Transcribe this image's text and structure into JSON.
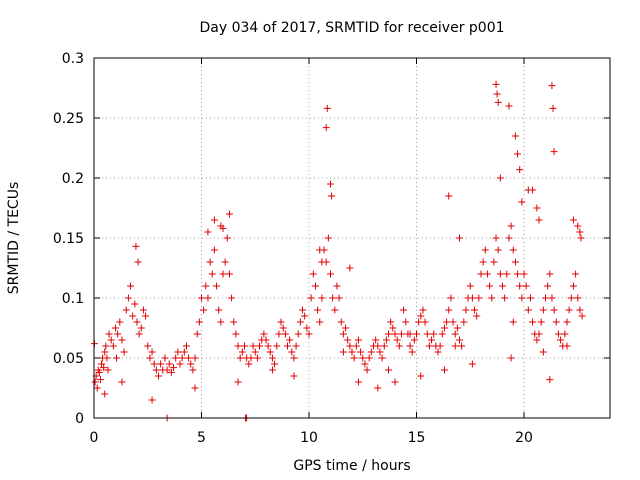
{
  "chart_data": {
    "type": "scatter",
    "title": "Day 034 of 2017, SRMTID for receiver p001",
    "xlabel": "GPS time / hours",
    "ylabel": "SRMTID / TECUs",
    "xlim": [
      0,
      24
    ],
    "ylim": [
      0,
      0.3
    ],
    "xticks": [
      0,
      5,
      10,
      15,
      20
    ],
    "yticks": [
      0,
      0.05,
      0.1,
      0.15,
      0.2,
      0.25,
      0.3
    ],
    "xtick_labels": [
      "0",
      "5",
      "10",
      "15",
      "20"
    ],
    "ytick_labels": [
      "0",
      "0.05",
      "0.1",
      "0.15",
      "0.2",
      "0.25",
      "0.3"
    ],
    "grid": true,
    "marker": "+",
    "color": "#e00000",
    "series": [
      {
        "name": "SRMTID",
        "x": [
          0.05,
          0.1,
          0.15,
          0.2,
          0.25,
          0.3,
          0.35,
          0.4,
          0.45,
          0.5,
          0.55,
          0.6,
          0.65,
          0.7,
          0.8,
          0.9,
          1.0,
          1.05,
          1.1,
          1.2,
          1.3,
          1.4,
          1.5,
          1.6,
          1.7,
          1.8,
          1.9,
          2.0,
          2.1,
          2.2,
          2.3,
          2.4,
          2.5,
          2.6,
          2.7,
          2.8,
          2.9,
          3.0,
          3.1,
          3.2,
          3.3,
          3.4,
          3.5,
          3.6,
          3.7,
          3.8,
          3.9,
          4.0,
          4.1,
          4.2,
          4.3,
          4.4,
          4.5,
          4.6,
          4.7,
          4.8,
          4.9,
          5.0,
          5.1,
          5.2,
          5.3,
          5.4,
          5.5,
          5.6,
          5.7,
          5.8,
          5.9,
          6.0,
          6.1,
          6.2,
          6.3,
          6.4,
          6.5,
          6.6,
          6.7,
          6.8,
          6.9,
          7.0,
          7.1,
          7.2,
          7.3,
          7.4,
          7.5,
          7.6,
          7.7,
          7.8,
          7.9,
          8.0,
          8.1,
          8.2,
          8.3,
          8.4,
          8.5,
          8.6,
          8.7,
          8.8,
          8.9,
          9.0,
          9.1,
          9.2,
          9.3,
          9.4,
          9.5,
          9.6,
          9.7,
          9.8,
          9.9,
          10.0,
          10.1,
          10.2,
          10.3,
          10.4,
          10.5,
          10.6,
          10.7,
          10.8,
          10.9,
          11.0,
          11.1,
          11.2,
          11.3,
          11.4,
          11.5,
          11.6,
          11.7,
          11.8,
          11.9,
          12.0,
          12.1,
          12.2,
          12.3,
          12.4,
          12.5,
          12.6,
          12.7,
          12.8,
          12.9,
          13.0,
          13.1,
          13.2,
          13.3,
          13.4,
          13.5,
          13.6,
          13.7,
          13.8,
          13.9,
          14.0,
          14.1,
          14.2,
          14.3,
          14.4,
          14.5,
          14.6,
          14.7,
          14.8,
          14.9,
          15.0,
          15.1,
          15.2,
          15.3,
          15.4,
          15.5,
          15.6,
          15.7,
          15.8,
          15.9,
          16.0,
          16.1,
          16.2,
          16.3,
          16.4,
          16.5,
          16.6,
          16.7,
          16.8,
          16.9,
          17.0,
          17.1,
          17.2,
          17.3,
          17.4,
          17.5,
          17.6,
          17.7,
          17.8,
          17.9,
          18.0,
          18.1,
          18.2,
          18.3,
          18.4,
          18.5,
          18.6,
          18.7,
          18.8,
          18.9,
          19.0,
          19.1,
          19.2,
          19.3,
          19.4,
          19.5,
          19.6,
          19.7,
          19.8,
          19.9,
          20.0,
          20.1,
          20.2,
          20.3,
          20.4,
          20.5,
          20.6,
          20.7,
          20.8,
          20.9,
          21.0,
          21.1,
          21.2,
          21.3,
          21.4,
          21.5,
          21.6,
          21.7,
          21.8,
          21.9,
          22.0,
          22.1,
          22.2,
          22.3,
          22.4,
          22.5,
          22.6,
          22.7,
          1.95,
          2.05,
          5.6,
          6.3,
          10.8,
          10.85,
          11.0,
          11.05,
          18.7,
          18.75,
          18.8,
          19.3,
          19.6,
          19.7,
          19.8,
          21.3,
          21.35,
          21.4,
          5.3,
          5.9,
          6.0,
          10.5,
          10.6,
          11.9,
          16.5,
          17.0,
          18.9,
          19.9,
          20.2,
          20.4,
          20.6,
          20.7,
          22.3,
          22.5,
          22.6,
          22.65,
          0.02,
          3.4,
          7.05,
          7.1,
          11.6,
          13.2,
          14.0,
          14.7,
          16.8,
          19.5,
          21.2,
          0.5,
          1.3,
          2.7,
          4.7,
          6.7,
          8.3,
          9.3,
          12.3,
          13.7,
          15.2,
          16.3,
          17.6,
          19.4,
          20.9,
          22.0
        ],
        "y": [
          0.03,
          0.035,
          0.025,
          0.04,
          0.038,
          0.032,
          0.045,
          0.05,
          0.042,
          0.055,
          0.06,
          0.05,
          0.04,
          0.07,
          0.065,
          0.06,
          0.075,
          0.05,
          0.07,
          0.08,
          0.065,
          0.055,
          0.09,
          0.1,
          0.11,
          0.085,
          0.095,
          0.08,
          0.07,
          0.075,
          0.09,
          0.085,
          0.06,
          0.05,
          0.055,
          0.045,
          0.04,
          0.035,
          0.045,
          0.04,
          0.05,
          0.04,
          0.045,
          0.038,
          0.042,
          0.05,
          0.055,
          0.045,
          0.05,
          0.055,
          0.06,
          0.05,
          0.045,
          0.04,
          0.05,
          0.07,
          0.08,
          0.1,
          0.09,
          0.11,
          0.1,
          0.13,
          0.12,
          0.14,
          0.11,
          0.09,
          0.08,
          0.12,
          0.13,
          0.15,
          0.12,
          0.1,
          0.08,
          0.07,
          0.06,
          0.05,
          0.055,
          0.06,
          0.05,
          0.045,
          0.05,
          0.06,
          0.055,
          0.05,
          0.06,
          0.065,
          0.07,
          0.065,
          0.06,
          0.055,
          0.05,
          0.045,
          0.06,
          0.07,
          0.08,
          0.075,
          0.07,
          0.06,
          0.065,
          0.055,
          0.05,
          0.06,
          0.07,
          0.08,
          0.09,
          0.085,
          0.075,
          0.07,
          0.1,
          0.12,
          0.11,
          0.09,
          0.08,
          0.1,
          0.14,
          0.13,
          0.15,
          0.12,
          0.1,
          0.09,
          0.11,
          0.1,
          0.08,
          0.07,
          0.075,
          0.065,
          0.06,
          0.055,
          0.05,
          0.06,
          0.065,
          0.055,
          0.05,
          0.045,
          0.04,
          0.05,
          0.055,
          0.06,
          0.065,
          0.06,
          0.055,
          0.05,
          0.06,
          0.065,
          0.07,
          0.08,
          0.075,
          0.07,
          0.065,
          0.06,
          0.07,
          0.09,
          0.08,
          0.07,
          0.06,
          0.055,
          0.065,
          0.07,
          0.08,
          0.085,
          0.09,
          0.08,
          0.07,
          0.06,
          0.065,
          0.07,
          0.06,
          0.055,
          0.06,
          0.07,
          0.075,
          0.08,
          0.09,
          0.1,
          0.08,
          0.07,
          0.075,
          0.065,
          0.06,
          0.08,
          0.09,
          0.1,
          0.11,
          0.1,
          0.09,
          0.085,
          0.1,
          0.12,
          0.13,
          0.14,
          0.12,
          0.11,
          0.1,
          0.13,
          0.15,
          0.14,
          0.12,
          0.11,
          0.1,
          0.12,
          0.15,
          0.16,
          0.14,
          0.13,
          0.12,
          0.11,
          0.1,
          0.12,
          0.11,
          0.09,
          0.1,
          0.08,
          0.07,
          0.065,
          0.07,
          0.08,
          0.09,
          0.1,
          0.11,
          0.12,
          0.1,
          0.09,
          0.08,
          0.07,
          0.065,
          0.06,
          0.07,
          0.08,
          0.09,
          0.1,
          0.11,
          0.12,
          0.1,
          0.09,
          0.085,
          0.143,
          0.13,
          0.165,
          0.17,
          0.242,
          0.258,
          0.195,
          0.185,
          0.278,
          0.27,
          0.263,
          0.26,
          0.235,
          0.22,
          0.207,
          0.277,
          0.258,
          0.222,
          0.155,
          0.16,
          0.158,
          0.14,
          0.13,
          0.125,
          0.185,
          0.15,
          0.2,
          0.18,
          0.19,
          0.19,
          0.175,
          0.165,
          0.165,
          0.16,
          0.155,
          0.15,
          0.062,
          0.0,
          0.0,
          0.0,
          0.055,
          0.025,
          0.03,
          0.07,
          0.06,
          0.08,
          0.032,
          0.02,
          0.03,
          0.015,
          0.025,
          0.03,
          0.04,
          0.035,
          0.03,
          0.04,
          0.035,
          0.04,
          0.045,
          0.05,
          0.055,
          0.06
        ]
      }
    ]
  }
}
